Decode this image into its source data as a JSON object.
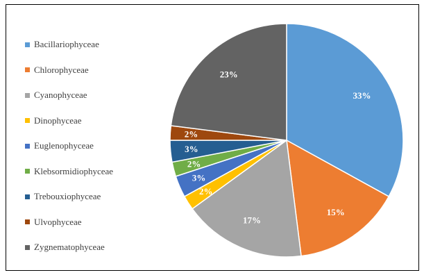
{
  "chart_data": {
    "type": "pie",
    "title": "",
    "categories": [
      "Bacillariophyceae",
      "Chlorophyceae",
      "Cyanophyceae",
      "Dinophyceae",
      "Euglenophyceae",
      "Klebsormidiophyceae",
      "Trebouxiophyceae",
      "Ulvophyceae",
      "Zygnematophyceae"
    ],
    "values": [
      33,
      15,
      17,
      2,
      3,
      2,
      3,
      2,
      23
    ],
    "labels": [
      "33%",
      "15%",
      "17%",
      "2%",
      "3%",
      "2%",
      "3%",
      "2%",
      "23%"
    ],
    "colors": [
      "#5B9BD5",
      "#ED7D31",
      "#A5A5A5",
      "#FFC000",
      "#4472C4",
      "#70AD47",
      "#255E91",
      "#9E480E",
      "#636363"
    ],
    "legend_position": "left",
    "start_angle": "12 o'clock, clockwise"
  }
}
